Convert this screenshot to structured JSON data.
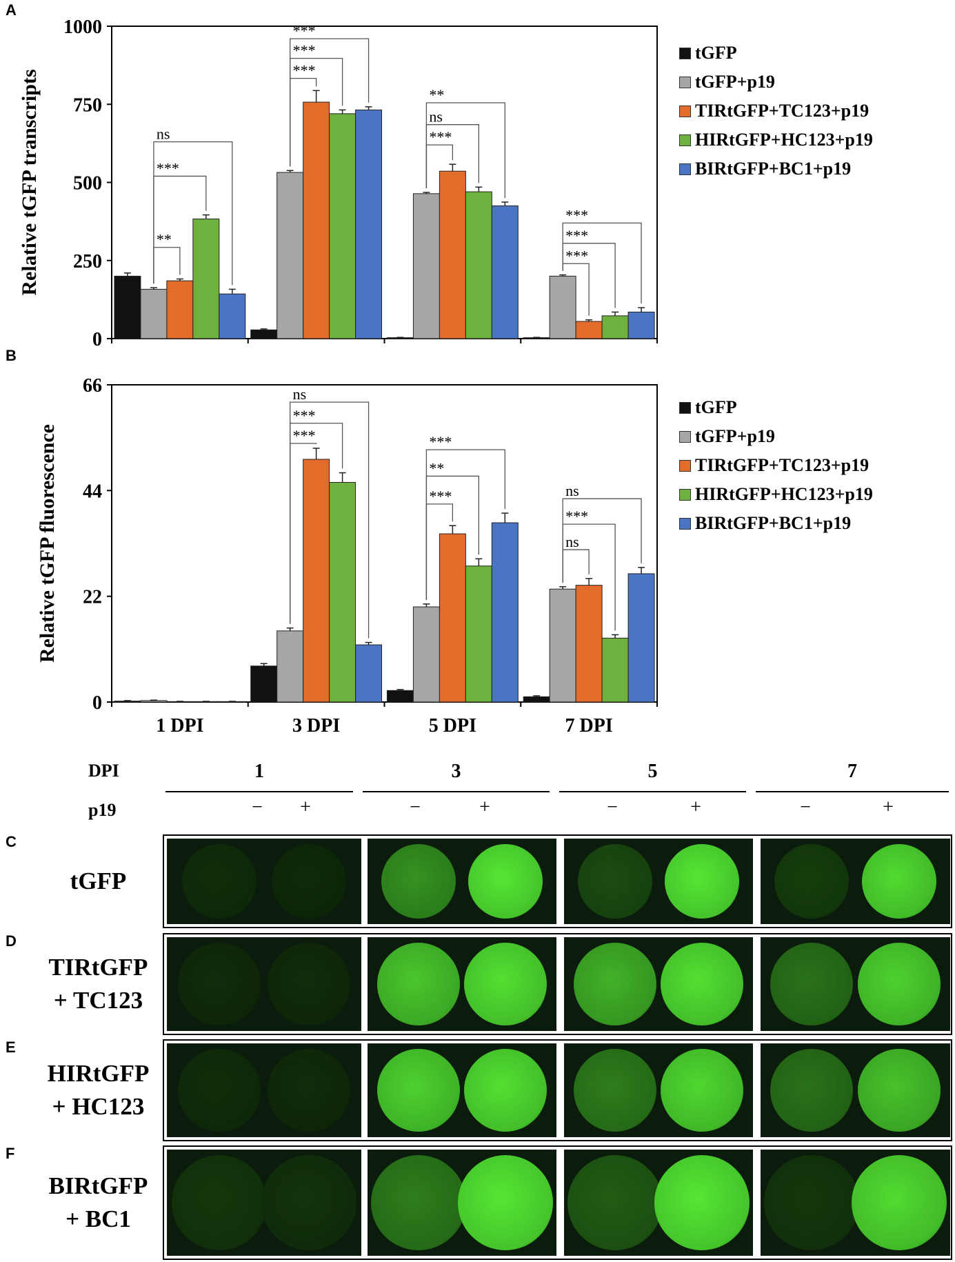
{
  "panels": {
    "A": "A",
    "B": "B",
    "C": "C",
    "D": "D",
    "E": "E",
    "F": "F"
  },
  "legend": [
    {
      "label": "tGFP",
      "color": "#111111"
    },
    {
      "label": "tGFP+p19",
      "color": "#a6a6a6"
    },
    {
      "label": "TIRtGFP+TC123+p19",
      "color": "#e46c2a"
    },
    {
      "label": "HIRtGFP+HC123+p19",
      "color": "#6fb13f"
    },
    {
      "label": "BIRtGFP+BC1+p19",
      "color": "#4a74c4"
    }
  ],
  "chart_data": [
    {
      "panel": "A",
      "type": "bar",
      "ylabel": "Relative tGFP transcripts",
      "ylim": [
        0,
        1000
      ],
      "yticks": [
        0,
        250,
        500,
        750,
        1000
      ],
      "categories": [
        "1 DPI",
        "3 DPI",
        "5 DPI",
        "7 DPI"
      ],
      "show_category_labels": false,
      "series": [
        {
          "name": "tGFP",
          "values": [
            200,
            28,
            3,
            3
          ],
          "errors": [
            10,
            3,
            1,
            1
          ]
        },
        {
          "name": "tGFP+p19",
          "values": [
            158,
            532,
            464,
            200
          ],
          "errors": [
            5,
            6,
            4,
            4
          ]
        },
        {
          "name": "TIRtGFP+TC123+p19",
          "values": [
            185,
            757,
            536,
            55
          ],
          "errors": [
            6,
            37,
            22,
            5
          ]
        },
        {
          "name": "HIRtGFP+HC123+p19",
          "values": [
            383,
            720,
            470,
            73
          ],
          "errors": [
            13,
            12,
            15,
            12
          ]
        },
        {
          "name": "BIRtGFP+BC1+p19",
          "values": [
            143,
            732,
            425,
            85
          ],
          "errors": [
            15,
            10,
            12,
            14
          ]
        }
      ],
      "significance": [
        {
          "group": 0,
          "from": 1,
          "to": 4,
          "label": "ns",
          "y": 630
        },
        {
          "group": 0,
          "from": 1,
          "to": 3,
          "label": "***",
          "y": 520
        },
        {
          "group": 0,
          "from": 1,
          "to": 2,
          "label": "**",
          "y": 292
        },
        {
          "group": 1,
          "from": 1,
          "to": 4,
          "label": "***",
          "y": 960
        },
        {
          "group": 1,
          "from": 1,
          "to": 3,
          "label": "***",
          "y": 897
        },
        {
          "group": 1,
          "from": 1,
          "to": 2,
          "label": "***",
          "y": 833
        },
        {
          "group": 2,
          "from": 1,
          "to": 4,
          "label": "**",
          "y": 755
        },
        {
          "group": 2,
          "from": 1,
          "to": 3,
          "label": "ns",
          "y": 685
        },
        {
          "group": 2,
          "from": 1,
          "to": 2,
          "label": "***",
          "y": 620
        },
        {
          "group": 3,
          "from": 1,
          "to": 4,
          "label": "***",
          "y": 370
        },
        {
          "group": 3,
          "from": 1,
          "to": 3,
          "label": "***",
          "y": 305
        },
        {
          "group": 3,
          "from": 1,
          "to": 2,
          "label": "***",
          "y": 240
        }
      ]
    },
    {
      "panel": "B",
      "type": "bar",
      "ylabel": "Relative tGFP fluorescence",
      "ylim": [
        0,
        66
      ],
      "yticks": [
        0,
        22,
        44,
        66
      ],
      "categories": [
        "1 DPI",
        "3 DPI",
        "5 DPI",
        "7 DPI"
      ],
      "show_category_labels": true,
      "series": [
        {
          "name": "tGFP",
          "values": [
            0.2,
            7.5,
            2.4,
            1.1
          ],
          "errors": [
            0.1,
            0.5,
            0.2,
            0.2
          ]
        },
        {
          "name": "tGFP+p19",
          "values": [
            0.3,
            14.8,
            19.8,
            23.5
          ],
          "errors": [
            0.1,
            0.6,
            0.6,
            0.5
          ]
        },
        {
          "name": "TIRtGFP+TC123+p19",
          "values": [
            0.1,
            50.5,
            35.0,
            24.3
          ],
          "errors": [
            0.05,
            2.3,
            1.7,
            1.4
          ]
        },
        {
          "name": "HIRtGFP+HC123+p19",
          "values": [
            0.1,
            45.7,
            28.3,
            13.3
          ],
          "errors": [
            0.05,
            2.0,
            1.5,
            0.7
          ]
        },
        {
          "name": "BIRtGFP+BC1+p19",
          "values": [
            0.1,
            11.9,
            37.3,
            26.7
          ],
          "errors": [
            0.05,
            0.5,
            2.0,
            1.3
          ]
        }
      ],
      "significance": [
        {
          "group": 1,
          "from": 1,
          "to": 4,
          "label": "ns",
          "y": 62.4
        },
        {
          "group": 1,
          "from": 1,
          "to": 3,
          "label": "***",
          "y": 58.0
        },
        {
          "group": 1,
          "from": 1,
          "to": 2,
          "label": "***",
          "y": 53.8
        },
        {
          "group": 2,
          "from": 1,
          "to": 4,
          "label": "***",
          "y": 52.5
        },
        {
          "group": 2,
          "from": 1,
          "to": 3,
          "label": "**",
          "y": 47.0
        },
        {
          "group": 2,
          "from": 1,
          "to": 2,
          "label": "***",
          "y": 41.2
        },
        {
          "group": 3,
          "from": 1,
          "to": 4,
          "label": "ns",
          "y": 42.3
        },
        {
          "group": 3,
          "from": 1,
          "to": 3,
          "label": "***",
          "y": 37.0
        },
        {
          "group": 3,
          "from": 1,
          "to": 2,
          "label": "ns",
          "y": 31.7
        }
      ]
    }
  ],
  "photo_grid": {
    "dpi_label": "DPI",
    "p19_label": "p19",
    "dpi_values": [
      "1",
      "3",
      "5",
      "7"
    ],
    "p19_states": [
      "−",
      "+",
      "−",
      "+",
      "−",
      "+",
      "−",
      "+"
    ],
    "rows": [
      {
        "label_lines": [
          "tGFP"
        ],
        "brightness": [
          0.08,
          0.06,
          0.55,
          0.95,
          0.22,
          0.95,
          0.15,
          0.9
        ]
      },
      {
        "label_lines": [
          "TIRtGFP",
          "+ TC123"
        ],
        "brightness": [
          0.07,
          0.07,
          0.8,
          0.92,
          0.7,
          0.92,
          0.4,
          0.85
        ]
      },
      {
        "label_lines": [
          "HIRtGFP",
          "+ HC123"
        ],
        "brightness": [
          0.08,
          0.07,
          0.85,
          0.92,
          0.45,
          0.88,
          0.4,
          0.78
        ]
      },
      {
        "label_lines": [
          "BIRtGFP",
          "+ BC1"
        ],
        "brightness": [
          0.12,
          0.1,
          0.45,
          0.95,
          0.3,
          0.95,
          0.12,
          0.9
        ]
      }
    ]
  }
}
